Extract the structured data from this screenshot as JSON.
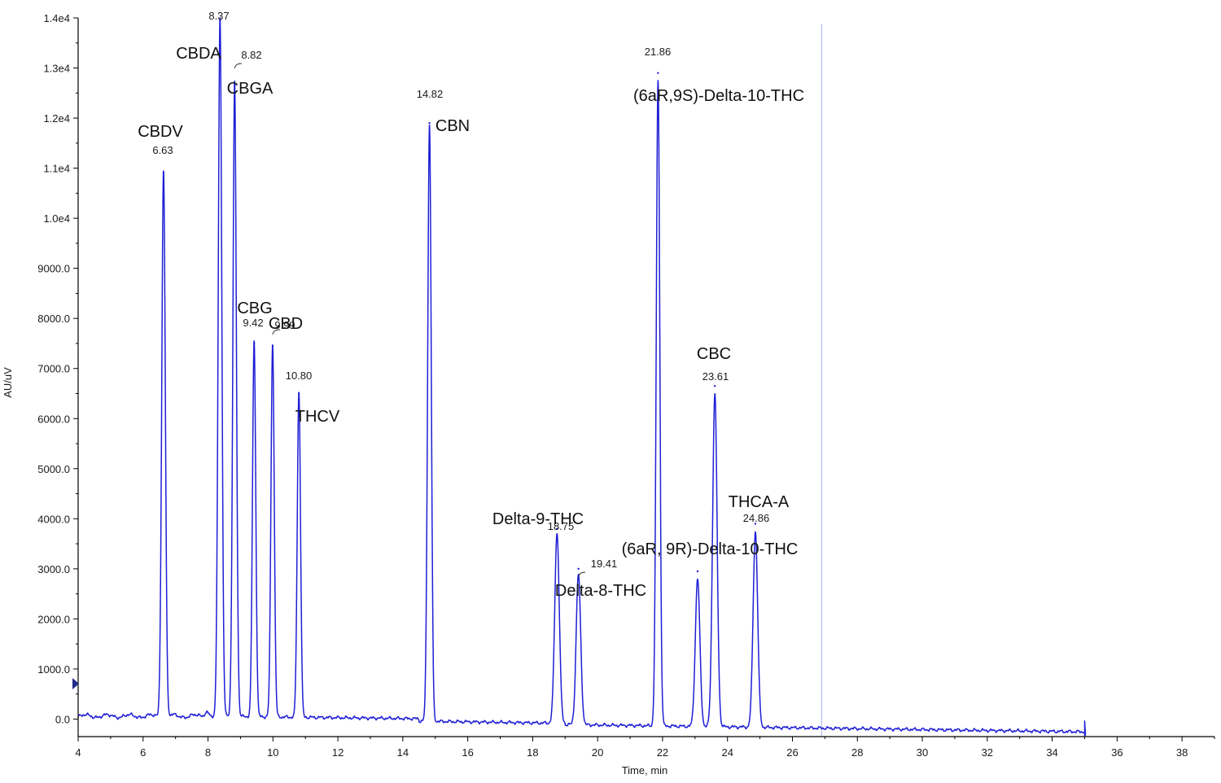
{
  "chart_data": {
    "type": "line",
    "title": "",
    "xlabel": "Time, min",
    "ylabel": "AU/uV",
    "xlim": [
      4,
      39
    ],
    "ylim": [
      -350,
      14000
    ],
    "x_ticks": [
      "4",
      "6",
      "8",
      "10",
      "12",
      "14",
      "16",
      "18",
      "20",
      "22",
      "24",
      "26",
      "28",
      "30",
      "32",
      "34",
      "36",
      "38"
    ],
    "y_ticks": [
      "0.0",
      "1000.0",
      "2000.0",
      "3000.0",
      "4000.0",
      "5000.0",
      "6000.0",
      "7000.0",
      "8000.0",
      "9000.0",
      "1.0e4",
      "1.1e4",
      "1.2e4",
      "1.3e4",
      "1.4e4"
    ],
    "grid": false,
    "colors": {
      "trace": "#1f1fd6",
      "marker_line": "#b4bbf0",
      "axis": "#000000"
    },
    "marker_line_x": 26.9,
    "run_end_x": 35.0,
    "peaks": [
      {
        "rt": "6.63",
        "x": 6.63,
        "height": 10900,
        "name": "CBDV"
      },
      {
        "rt": "8.37",
        "x": 8.37,
        "height": 13950,
        "name": "CBDA"
      },
      {
        "rt": "8.82",
        "x": 8.82,
        "height": 12650,
        "name": "CBGA"
      },
      {
        "rt": "9.42",
        "x": 9.42,
        "height": 7500,
        "name": "CBG"
      },
      {
        "rt": "9.99",
        "x": 9.99,
        "height": 7450,
        "name": "CBD"
      },
      {
        "rt": "10.80",
        "x": 10.8,
        "height": 6500,
        "name": "THCV"
      },
      {
        "rt": "14.82",
        "x": 14.82,
        "height": 11900,
        "name": "CBN"
      },
      {
        "rt": "18.75",
        "x": 18.75,
        "height": 3800,
        "name": "Delta-9-THC"
      },
      {
        "rt": "19.41",
        "x": 19.41,
        "height": 3000,
        "name": "Delta-8-THC"
      },
      {
        "rt": "21.86",
        "x": 21.86,
        "height": 12900,
        "name": "(6aR,9S)-Delta-10-THC"
      },
      {
        "rt": "",
        "x": 23.08,
        "height": 2950,
        "name": ""
      },
      {
        "rt": "23.61",
        "x": 23.61,
        "height": 6650,
        "name": "CBC"
      },
      {
        "rt": "24.86",
        "x": 24.86,
        "height": 3900,
        "name": "THCA-A"
      }
    ],
    "extra_labels": [
      {
        "text": "(6aR, 9R)-Delta-10-THC"
      }
    ]
  }
}
